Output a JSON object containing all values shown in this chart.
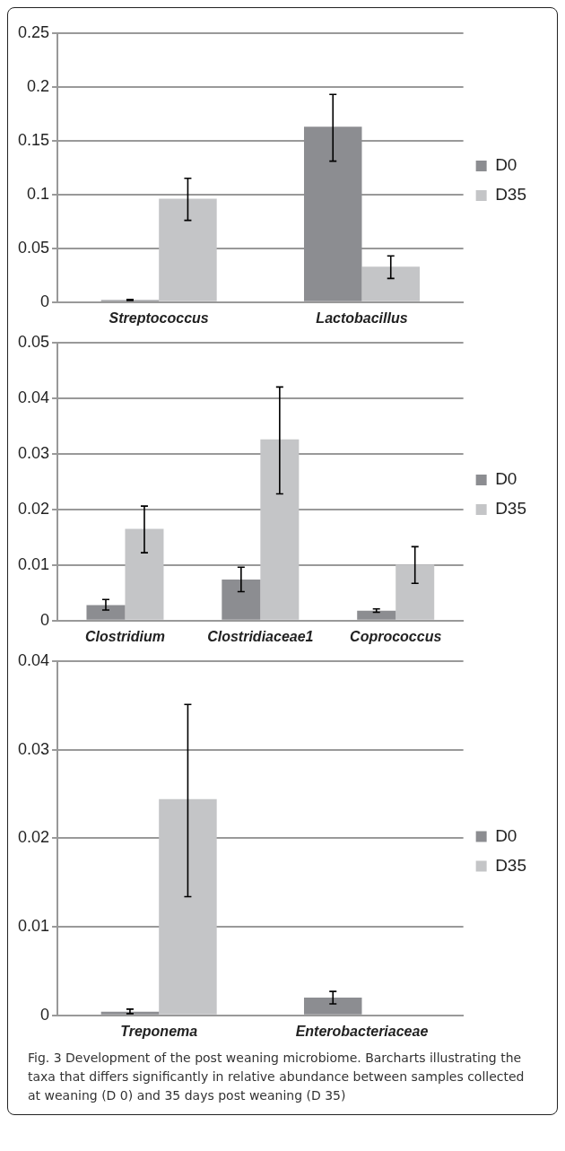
{
  "chart_data": [
    {
      "type": "bar",
      "categories": [
        "Streptococcus",
        "Lactobacillus"
      ],
      "series": [
        {
          "name": "D0",
          "color": "#8c8d91",
          "values": [
            0.002,
            0.163
          ],
          "errors": [
            0.0004,
            [
              0.131,
              0.193
            ]
          ]
        },
        {
          "name": "D35",
          "color": "#c4c5c7",
          "values": [
            0.096,
            0.033
          ],
          "errors": [
            [
              0.076,
              0.115
            ],
            [
              0.022,
              0.043
            ]
          ]
        }
      ],
      "ylim": [
        0,
        0.25
      ],
      "yticks": [
        0,
        0.05,
        0.1,
        0.15,
        0.2,
        0.25
      ],
      "grid": "y",
      "legend": "right"
    },
    {
      "type": "bar",
      "categories": [
        "Clostridium",
        "Clostridiaceae1",
        "Coprococcus"
      ],
      "series": [
        {
          "name": "D0",
          "color": "#8c8d91",
          "values": [
            0.0028,
            0.0074,
            0.0018
          ],
          "errors": [
            [
              0.0019,
              0.0038
            ],
            [
              0.0052,
              0.0096
            ],
            [
              0.0015,
              0.0021
            ]
          ]
        },
        {
          "name": "D35",
          "color": "#c4c5c7",
          "values": [
            0.0165,
            0.0326,
            0.0101
          ],
          "errors": [
            [
              0.0122,
              0.0206
            ],
            [
              0.0228,
              0.042
            ],
            [
              0.0067,
              0.0133
            ]
          ]
        }
      ],
      "ylim": [
        0,
        0.05
      ],
      "yticks": [
        0,
        0.01,
        0.02,
        0.03,
        0.04,
        0.05
      ],
      "grid": "y",
      "legend": "right"
    },
    {
      "type": "bar",
      "categories": [
        "Treponema",
        "Enterobacteriaceae"
      ],
      "series": [
        {
          "name": "D0",
          "color": "#8c8d91",
          "values": [
            0.0004,
            0.002
          ],
          "errors": [
            [
              0.0002,
              0.0007
            ],
            [
              0.0013,
              0.0027
            ]
          ]
        },
        {
          "name": "D35",
          "color": "#c4c5c7",
          "values": [
            0.0244,
            null
          ],
          "errors": [
            [
              0.0134,
              0.0351
            ],
            null
          ]
        }
      ],
      "ylim": [
        0,
        0.04
      ],
      "yticks": [
        0,
        0.01,
        0.02,
        0.03,
        0.04
      ],
      "grid": "y",
      "legend": "right",
      "annotations": [
        "Fig. 3 Development of the post weaning microbiome. Barcharts illustrating the taxa that differs significantly in relative abundance between samples collected at weaning (D 0) and 35 days post weaning (D 35)"
      ]
    }
  ]
}
